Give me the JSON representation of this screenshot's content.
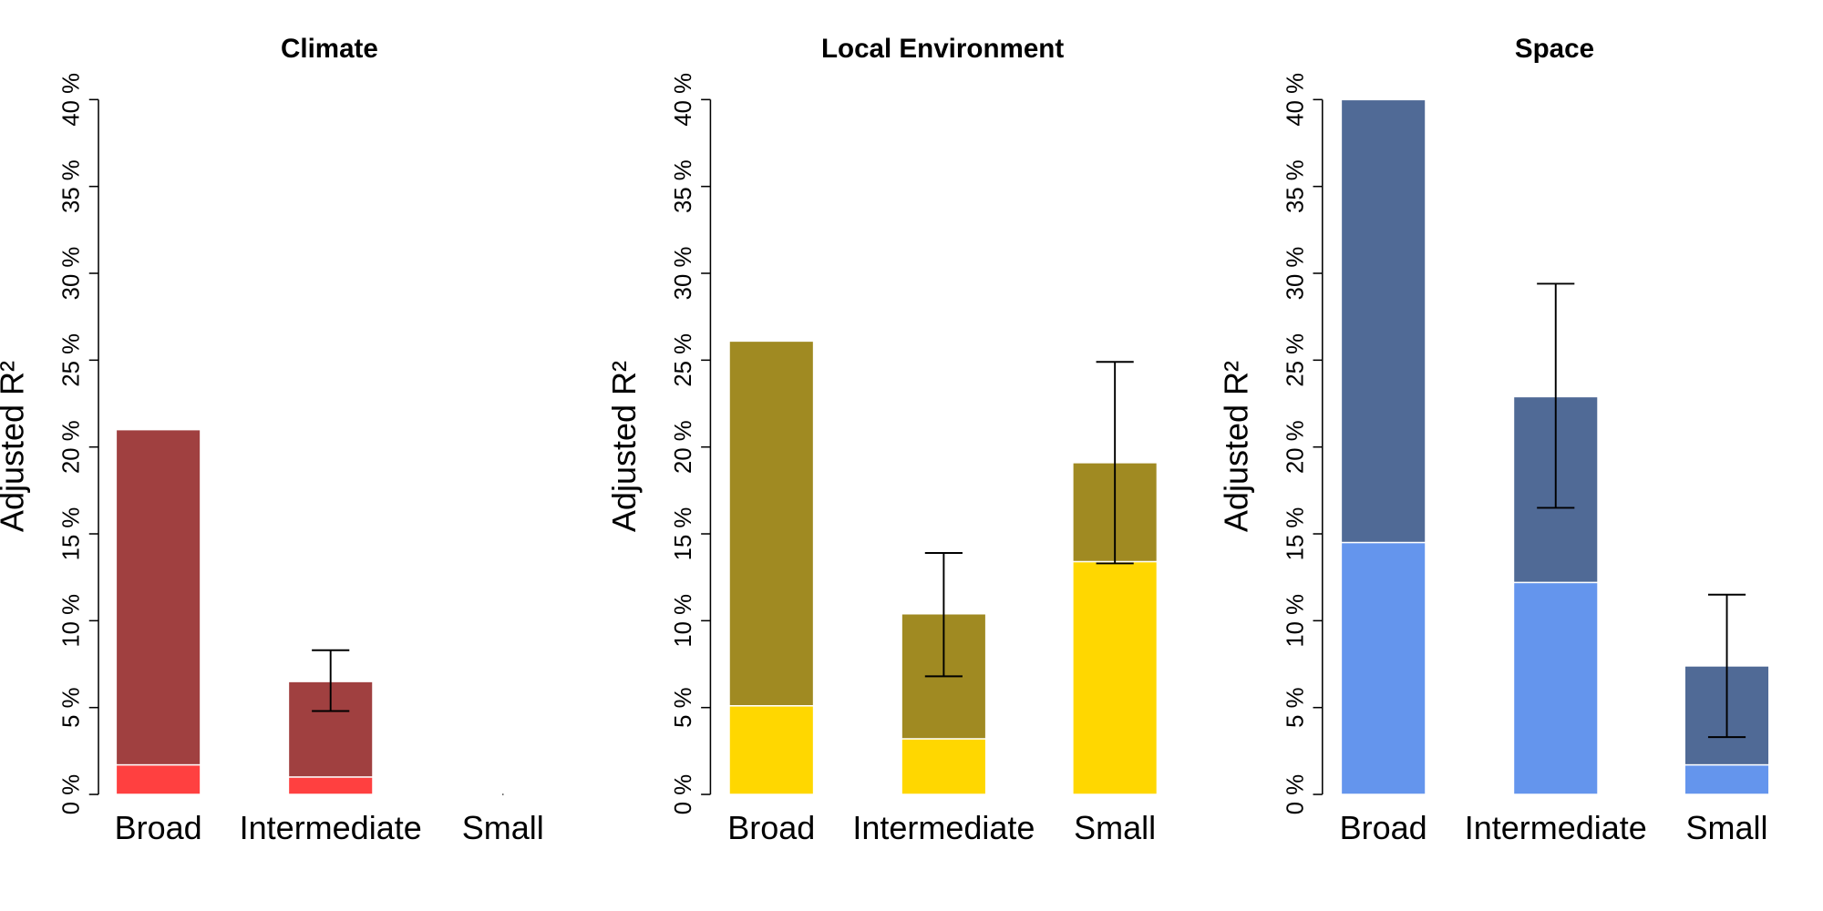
{
  "chart_data": [
    {
      "type": "bar",
      "title": "Climate",
      "ylabel": "Adjusted R²",
      "categories": [
        "Broad",
        "Intermediate",
        "Small"
      ],
      "ylim": [
        0,
        40
      ],
      "ytick_labels": [
        "0 %",
        "5 %",
        "10 %",
        "15 %",
        "20 %",
        "25 %",
        "30 %",
        "35 %",
        "40 %"
      ],
      "series": [
        {
          "role": "lower",
          "values": [
            1.7,
            1.0,
            0
          ],
          "color": "#FF4040"
        },
        {
          "role": "total",
          "values": [
            21.0,
            6.5,
            0
          ],
          "color": "#A04040"
        }
      ],
      "error_bars": [
        null,
        [
          4.8,
          8.3
        ],
        null
      ]
    },
    {
      "type": "bar",
      "title": "Local Environment",
      "ylabel": "Adjusted R²",
      "categories": [
        "Broad",
        "Intermediate",
        "Small"
      ],
      "ylim": [
        0,
        40
      ],
      "ytick_labels": [
        "0 %",
        "5 %",
        "10 %",
        "15 %",
        "20 %",
        "25 %",
        "30 %",
        "35 %",
        "40 %"
      ],
      "series": [
        {
          "role": "lower",
          "values": [
            5.1,
            3.2,
            13.4
          ],
          "color": "#FFD700"
        },
        {
          "role": "total",
          "values": [
            26.1,
            10.4,
            19.1
          ],
          "color": "#A08A22"
        }
      ],
      "error_bars": [
        null,
        [
          6.8,
          13.9
        ],
        [
          13.3,
          24.9
        ]
      ]
    },
    {
      "type": "bar",
      "title": "Space",
      "ylabel": "Adjusted R²",
      "categories": [
        "Broad",
        "Intermediate",
        "Small"
      ],
      "ylim": [
        0,
        40
      ],
      "ytick_labels": [
        "0 %",
        "5 %",
        "10 %",
        "15 %",
        "20 %",
        "25 %",
        "30 %",
        "35 %",
        "40 %"
      ],
      "series": [
        {
          "role": "lower",
          "values": [
            14.5,
            12.2,
            1.7
          ],
          "color": "#6495ED"
        },
        {
          "role": "total",
          "values": [
            40.0,
            22.9,
            7.4
          ],
          "color": "#506A96"
        }
      ],
      "error_bars": [
        null,
        [
          16.5,
          29.4
        ],
        [
          3.3,
          11.5
        ]
      ]
    }
  ]
}
